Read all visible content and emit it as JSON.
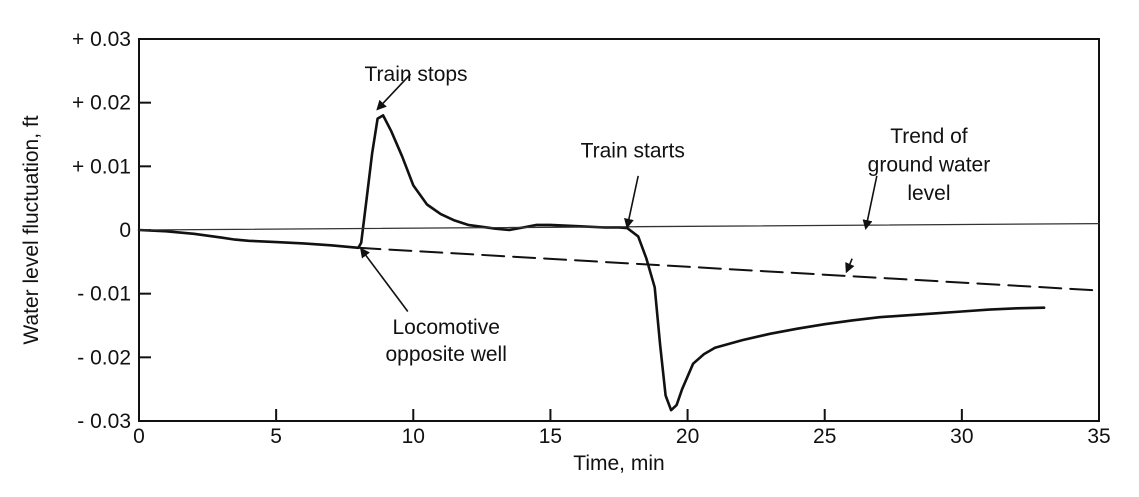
{
  "chart_data": {
    "type": "line",
    "xlabel": "Time, min",
    "ylabel": "Water level fluctuation, ft",
    "xlim": [
      0,
      35
    ],
    "ylim": [
      -0.03,
      0.03
    ],
    "xticks": [
      0,
      5,
      10,
      15,
      20,
      25,
      30,
      35
    ],
    "xtick_labels": [
      "0",
      "5",
      "10",
      "15",
      "20",
      "25",
      "30",
      "35"
    ],
    "yticks": [
      0.03,
      0.02,
      0.01,
      0,
      -0.01,
      -0.02,
      -0.03
    ],
    "ytick_labels": [
      "+ 0.03",
      "+ 0.02",
      "+ 0.01",
      "0",
      "- 0.01",
      "- 0.02",
      "- 0.03"
    ],
    "grid": false,
    "series": [
      {
        "style": "solid",
        "x": [
          0,
          1,
          2,
          2.5,
          3,
          3.5,
          4,
          5,
          6,
          7,
          7.5,
          8,
          8.1,
          8.3,
          8.5,
          8.7,
          8.9,
          9.2,
          9.6,
          10,
          10.5,
          11,
          11.5,
          12,
          13,
          13.5,
          14,
          14.5,
          15,
          16,
          17,
          17.5,
          17.8,
          18.2,
          18.5,
          18.8,
          19,
          19.2,
          19.4,
          19.6,
          19.8,
          20.2,
          20.6,
          21,
          22,
          23,
          24,
          25,
          26,
          27,
          28,
          29,
          30,
          31,
          32,
          33
        ],
        "y": [
          0,
          -0.0002,
          -0.0006,
          -0.0009,
          -0.0012,
          -0.0015,
          -0.0017,
          -0.0019,
          -0.0021,
          -0.0024,
          -0.0026,
          -0.0028,
          -0.002,
          0.005,
          0.012,
          0.0175,
          0.018,
          0.0155,
          0.0115,
          0.007,
          0.004,
          0.0025,
          0.0015,
          0.0008,
          0.0002,
          0,
          0.0004,
          0.0008,
          0.0008,
          0.0006,
          0.0004,
          0.0004,
          0.0003,
          -0.001,
          -0.0045,
          -0.009,
          -0.018,
          -0.026,
          -0.0283,
          -0.0275,
          -0.025,
          -0.021,
          -0.0195,
          -0.0185,
          -0.0173,
          -0.0163,
          -0.0155,
          -0.0148,
          -0.0142,
          -0.0137,
          -0.0134,
          -0.0131,
          -0.0128,
          -0.0125,
          -0.0123,
          -0.0122
        ]
      },
      {
        "style": "thin",
        "x": [
          0,
          35
        ],
        "y": [
          0,
          0.001
        ]
      },
      {
        "style": "dashed",
        "x": [
          8,
          35
        ],
        "y": [
          -0.0028,
          -0.0095
        ]
      }
    ],
    "annotations": [
      {
        "text": "Train stops",
        "x": 10.1,
        "y": 0.0245
      },
      {
        "text": "Train starts",
        "x": 18,
        "y": 0.0125
      },
      {
        "text": "Trend of",
        "x": 28.8,
        "y": 0.0148
      },
      {
        "text": "ground water",
        "x": 28.8,
        "y": 0.0103
      },
      {
        "text": "level",
        "x": 28.8,
        "y": 0.0058
      },
      {
        "text": "Locomotive",
        "x": 11.2,
        "y": -0.0152
      },
      {
        "text": "opposite well",
        "x": 11.2,
        "y": -0.0195
      }
    ],
    "arrows": [
      {
        "from": [
          9.9,
          0.0245
        ],
        "to": [
          8.7,
          0.019
        ]
      },
      {
        "from": [
          18.2,
          0.0085
        ],
        "to": [
          17.8,
          0.0005
        ]
      },
      {
        "from": [
          26.9,
          0.0085
        ],
        "to": [
          26.5,
          0.0003
        ]
      },
      {
        "from": [
          9.8,
          -0.0128
        ],
        "to": [
          8.1,
          -0.003
        ]
      },
      {
        "from": [
          26.0,
          -0.0045
        ],
        "to": [
          25.8,
          -0.0065
        ]
      }
    ]
  }
}
